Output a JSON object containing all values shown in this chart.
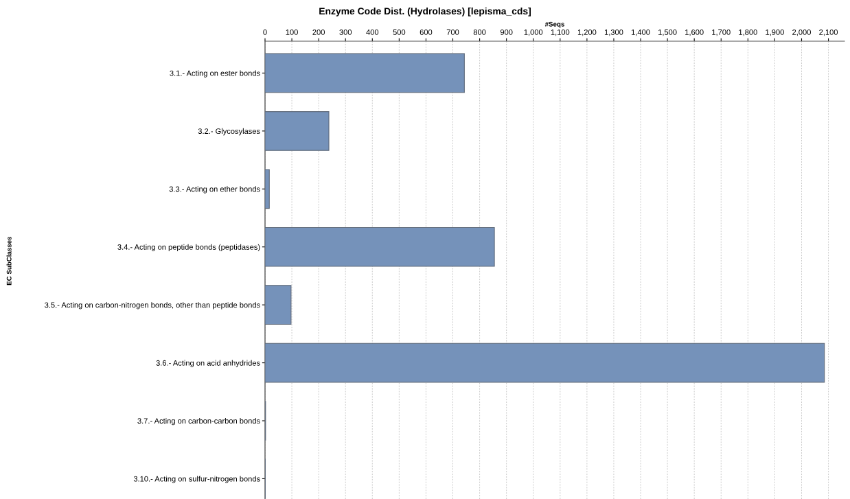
{
  "chart_data": {
    "type": "bar",
    "orientation": "horizontal",
    "title": "Enzyme Code Dist. (Hydrolases) [lepisma_cds]",
    "xlabel": "#Seqs",
    "ylabel": "EC SubClasses",
    "categories": [
      "3.1.- Acting on ester bonds",
      "3.2.- Glycosylases",
      "3.3.- Acting on ether bonds",
      "3.4.- Acting on peptide bonds (peptidases)",
      "3.5.- Acting on carbon-nitrogen bonds, other than peptide bonds",
      "3.6.- Acting on acid anhydrides",
      "3.7.- Acting on carbon-carbon bonds",
      "3.10.- Acting on sulfur-nitrogen bonds"
    ],
    "values": [
      743,
      238,
      16,
      855,
      97,
      2085,
      2,
      1
    ],
    "color": "#7592ba",
    "xlim": [
      0,
      2160
    ],
    "xticks": [
      0,
      100,
      200,
      300,
      400,
      500,
      600,
      700,
      800,
      900,
      {
        "value": 1000,
        "label": "1,000"
      },
      {
        "value": 1100,
        "label": "1,100"
      },
      {
        "value": 1200,
        "label": "1,200"
      },
      {
        "value": 1300,
        "label": "1,300"
      },
      {
        "value": 1400,
        "label": "1,400"
      },
      {
        "value": 1500,
        "label": "1,500"
      },
      {
        "value": 1600,
        "label": "1,600"
      },
      {
        "value": 1700,
        "label": "1,700"
      },
      {
        "value": 1800,
        "label": "1,800"
      },
      {
        "value": 1900,
        "label": "1,900"
      },
      {
        "value": 2000,
        "label": "2,000"
      },
      {
        "value": 2100,
        "label": "2,100"
      }
    ],
    "grid": "x"
  }
}
